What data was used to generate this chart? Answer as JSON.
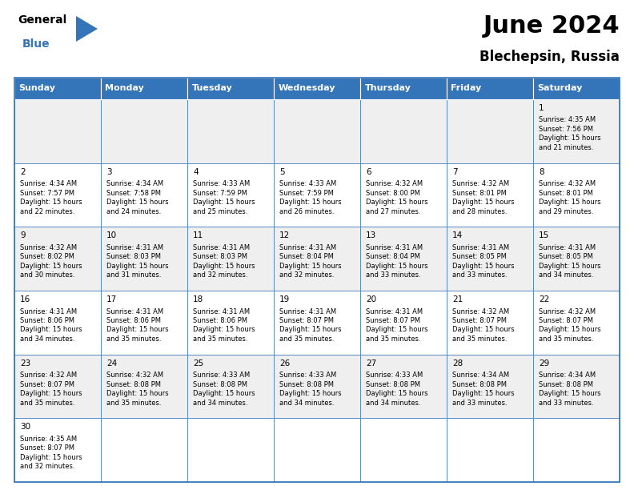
{
  "title": "June 2024",
  "subtitle": "Blechepsin, Russia",
  "header_color": "#3474b8",
  "header_text_color": "#ffffff",
  "days_of_week": [
    "Sunday",
    "Monday",
    "Tuesday",
    "Wednesday",
    "Thursday",
    "Friday",
    "Saturday"
  ],
  "cell_bg_odd": "#efefef",
  "cell_bg_even": "#ffffff",
  "border_color": "#3474b8",
  "text_color": "#000000",
  "calendar": [
    [
      null,
      null,
      null,
      null,
      null,
      null,
      {
        "day": 1,
        "sunrise": "4:35 AM",
        "sunset": "7:56 PM",
        "daylight": "15 hours\nand 21 minutes."
      }
    ],
    [
      {
        "day": 2,
        "sunrise": "4:34 AM",
        "sunset": "7:57 PM",
        "daylight": "15 hours\nand 22 minutes."
      },
      {
        "day": 3,
        "sunrise": "4:34 AM",
        "sunset": "7:58 PM",
        "daylight": "15 hours\nand 24 minutes."
      },
      {
        "day": 4,
        "sunrise": "4:33 AM",
        "sunset": "7:59 PM",
        "daylight": "15 hours\nand 25 minutes."
      },
      {
        "day": 5,
        "sunrise": "4:33 AM",
        "sunset": "7:59 PM",
        "daylight": "15 hours\nand 26 minutes."
      },
      {
        "day": 6,
        "sunrise": "4:32 AM",
        "sunset": "8:00 PM",
        "daylight": "15 hours\nand 27 minutes."
      },
      {
        "day": 7,
        "sunrise": "4:32 AM",
        "sunset": "8:01 PM",
        "daylight": "15 hours\nand 28 minutes."
      },
      {
        "day": 8,
        "sunrise": "4:32 AM",
        "sunset": "8:01 PM",
        "daylight": "15 hours\nand 29 minutes."
      }
    ],
    [
      {
        "day": 9,
        "sunrise": "4:32 AM",
        "sunset": "8:02 PM",
        "daylight": "15 hours\nand 30 minutes."
      },
      {
        "day": 10,
        "sunrise": "4:31 AM",
        "sunset": "8:03 PM",
        "daylight": "15 hours\nand 31 minutes."
      },
      {
        "day": 11,
        "sunrise": "4:31 AM",
        "sunset": "8:03 PM",
        "daylight": "15 hours\nand 32 minutes."
      },
      {
        "day": 12,
        "sunrise": "4:31 AM",
        "sunset": "8:04 PM",
        "daylight": "15 hours\nand 32 minutes."
      },
      {
        "day": 13,
        "sunrise": "4:31 AM",
        "sunset": "8:04 PM",
        "daylight": "15 hours\nand 33 minutes."
      },
      {
        "day": 14,
        "sunrise": "4:31 AM",
        "sunset": "8:05 PM",
        "daylight": "15 hours\nand 33 minutes."
      },
      {
        "day": 15,
        "sunrise": "4:31 AM",
        "sunset": "8:05 PM",
        "daylight": "15 hours\nand 34 minutes."
      }
    ],
    [
      {
        "day": 16,
        "sunrise": "4:31 AM",
        "sunset": "8:06 PM",
        "daylight": "15 hours\nand 34 minutes."
      },
      {
        "day": 17,
        "sunrise": "4:31 AM",
        "sunset": "8:06 PM",
        "daylight": "15 hours\nand 35 minutes."
      },
      {
        "day": 18,
        "sunrise": "4:31 AM",
        "sunset": "8:06 PM",
        "daylight": "15 hours\nand 35 minutes."
      },
      {
        "day": 19,
        "sunrise": "4:31 AM",
        "sunset": "8:07 PM",
        "daylight": "15 hours\nand 35 minutes."
      },
      {
        "day": 20,
        "sunrise": "4:31 AM",
        "sunset": "8:07 PM",
        "daylight": "15 hours\nand 35 minutes."
      },
      {
        "day": 21,
        "sunrise": "4:32 AM",
        "sunset": "8:07 PM",
        "daylight": "15 hours\nand 35 minutes."
      },
      {
        "day": 22,
        "sunrise": "4:32 AM",
        "sunset": "8:07 PM",
        "daylight": "15 hours\nand 35 minutes."
      }
    ],
    [
      {
        "day": 23,
        "sunrise": "4:32 AM",
        "sunset": "8:07 PM",
        "daylight": "15 hours\nand 35 minutes."
      },
      {
        "day": 24,
        "sunrise": "4:32 AM",
        "sunset": "8:08 PM",
        "daylight": "15 hours\nand 35 minutes."
      },
      {
        "day": 25,
        "sunrise": "4:33 AM",
        "sunset": "8:08 PM",
        "daylight": "15 hours\nand 34 minutes."
      },
      {
        "day": 26,
        "sunrise": "4:33 AM",
        "sunset": "8:08 PM",
        "daylight": "15 hours\nand 34 minutes."
      },
      {
        "day": 27,
        "sunrise": "4:33 AM",
        "sunset": "8:08 PM",
        "daylight": "15 hours\nand 34 minutes."
      },
      {
        "day": 28,
        "sunrise": "4:34 AM",
        "sunset": "8:08 PM",
        "daylight": "15 hours\nand 33 minutes."
      },
      {
        "day": 29,
        "sunrise": "4:34 AM",
        "sunset": "8:08 PM",
        "daylight": "15 hours\nand 33 minutes."
      }
    ],
    [
      {
        "day": 30,
        "sunrise": "4:35 AM",
        "sunset": "8:07 PM",
        "daylight": "15 hours\nand 32 minutes."
      },
      null,
      null,
      null,
      null,
      null,
      null
    ]
  ],
  "fig_width": 7.92,
  "fig_height": 6.12,
  "dpi": 100,
  "title_fontsize": 22,
  "subtitle_fontsize": 12,
  "dow_fontsize": 8,
  "day_num_fontsize": 7.5,
  "cell_text_fontsize": 6.0,
  "logo_general_fontsize": 10,
  "logo_blue_fontsize": 10
}
